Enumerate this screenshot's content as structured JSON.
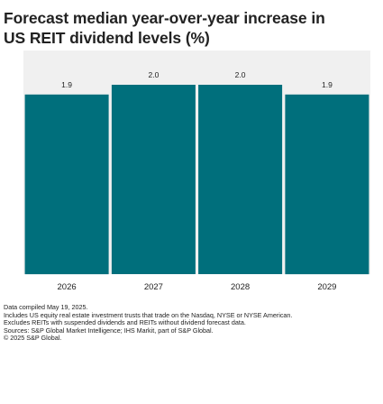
{
  "chart_data": {
    "type": "bar",
    "title": "Forecast median year-over-year increase in US REIT dividend levels (%)",
    "categories": [
      "2026",
      "2027",
      "2028",
      "2029"
    ],
    "values": [
      1.9,
      2.0,
      2.0,
      1.9
    ],
    "value_labels": [
      "1.9",
      "2.0",
      "2.0",
      "1.9"
    ],
    "xlabel": "",
    "ylabel": "",
    "grid": false,
    "bar_color": "#006f7c"
  },
  "title_lines": [
    "Forecast median year-over-year increase in",
    "US REIT dividend levels (%)"
  ],
  "footnotes": [
    "Data compiled May 19, 2025.",
    "Includes US equity real estate investment trusts that trade on the Nasdaq, NYSE or NYSE American.",
    "Excludes REITs with suspended dividends and REITs without dividend forecast data.",
    "Sources: S&P Global Market Intelligence; IHS Markit, part of S&P Global.",
    "© 2025 S&P Global."
  ]
}
